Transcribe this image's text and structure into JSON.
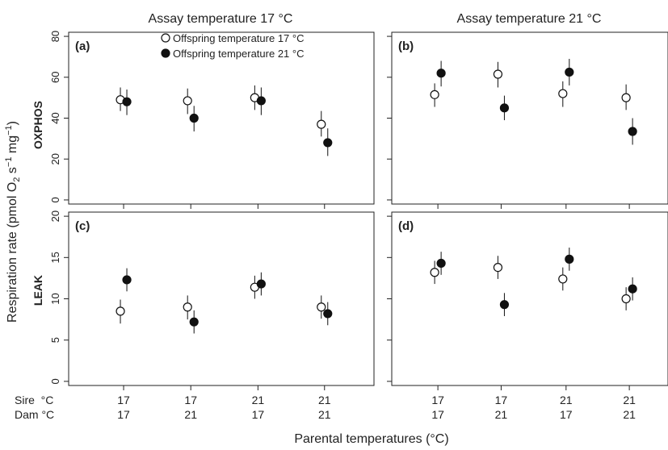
{
  "figure": {
    "ylabel": "Respiration rate (pmol O",
    "ylabel_sub": "2",
    "ylabel_mid": " s",
    "ylabel_sup1": "−1",
    "ylabel_mid2": " mg",
    "ylabel_sup2": "−1",
    "ylabel_end": ")",
    "xlabel": "Parental temperatures (°C)",
    "col_titles": [
      "Assay temperature 17 °C",
      "Assay temperature 21 °C"
    ],
    "row_labels": [
      "OXPHOS",
      "LEAK"
    ],
    "sire_label": "Sire  °C",
    "dam_label": "Dam °C",
    "legend": {
      "open": "Offspring temperature 17 °C",
      "filled": "Offspring temperature 21 °C"
    },
    "colors": {
      "axis": "#222222",
      "point": "#111111",
      "background": "#ffffff"
    }
  },
  "chart_data": [
    {
      "type": "scatter",
      "panel": "(a)",
      "categories": [
        {
          "sire": "17",
          "dam": "17"
        },
        {
          "sire": "17",
          "dam": "21"
        },
        {
          "sire": "21",
          "dam": "17"
        },
        {
          "sire": "21",
          "dam": "21"
        }
      ],
      "ylim": [
        -2,
        82
      ],
      "yticks": [
        0,
        20,
        40,
        60,
        80
      ],
      "series": [
        {
          "name": "Offspring temperature 17 °C",
          "marker": "open",
          "values": [
            49,
            48.5,
            50,
            37
          ],
          "lower": [
            43.5,
            42,
            44,
            31
          ],
          "upper": [
            55,
            54.5,
            56,
            43.5
          ]
        },
        {
          "name": "Offspring temperature 21 °C",
          "marker": "filled",
          "values": [
            48,
            40,
            48.5,
            28
          ],
          "lower": [
            41.5,
            33.5,
            41.5,
            21.5
          ],
          "upper": [
            54,
            46,
            55,
            35
          ]
        }
      ]
    },
    {
      "type": "scatter",
      "panel": "(b)",
      "categories": [
        {
          "sire": "17",
          "dam": "17"
        },
        {
          "sire": "17",
          "dam": "21"
        },
        {
          "sire": "21",
          "dam": "17"
        },
        {
          "sire": "21",
          "dam": "21"
        }
      ],
      "ylim": [
        -2,
        82
      ],
      "yticks": [
        0,
        20,
        40,
        60,
        80
      ],
      "series": [
        {
          "name": "Offspring temperature 17 °C",
          "marker": "open",
          "values": [
            51.5,
            61.5,
            52,
            50
          ],
          "lower": [
            45.5,
            55,
            45.5,
            44
          ],
          "upper": [
            57,
            67.5,
            58,
            56.5
          ]
        },
        {
          "name": "Offspring temperature 21 °C",
          "marker": "filled",
          "values": [
            62,
            45,
            62.5,
            33.5
          ],
          "lower": [
            55.5,
            39,
            56,
            27
          ],
          "upper": [
            68,
            51,
            69,
            40
          ]
        }
      ]
    },
    {
      "type": "scatter",
      "panel": "(c)",
      "categories": [
        {
          "sire": "17",
          "dam": "17"
        },
        {
          "sire": "17",
          "dam": "21"
        },
        {
          "sire": "21",
          "dam": "17"
        },
        {
          "sire": "21",
          "dam": "21"
        }
      ],
      "ylim": [
        -0.5,
        20.5
      ],
      "yticks": [
        0,
        5,
        10,
        15,
        20
      ],
      "series": [
        {
          "name": "Offspring temperature 17 °C",
          "marker": "open",
          "values": [
            8.5,
            9,
            11.4,
            9
          ],
          "lower": [
            7,
            7.5,
            10,
            7.6
          ],
          "upper": [
            9.9,
            10.4,
            12.8,
            10.4
          ]
        },
        {
          "name": "Offspring temperature 21 °C",
          "marker": "filled",
          "values": [
            12.3,
            7.2,
            11.8,
            8.2
          ],
          "lower": [
            10.9,
            5.8,
            10.4,
            6.8
          ],
          "upper": [
            13.7,
            8.6,
            13.2,
            9.6
          ]
        }
      ]
    },
    {
      "type": "scatter",
      "panel": "(d)",
      "categories": [
        {
          "sire": "17",
          "dam": "17"
        },
        {
          "sire": "17",
          "dam": "21"
        },
        {
          "sire": "21",
          "dam": "17"
        },
        {
          "sire": "21",
          "dam": "21"
        }
      ],
      "ylim": [
        -0.5,
        20.5
      ],
      "yticks": [
        0,
        5,
        10,
        15,
        20
      ],
      "series": [
        {
          "name": "Offspring temperature 17 °C",
          "marker": "open",
          "values": [
            13.2,
            13.8,
            12.4,
            10
          ],
          "lower": [
            11.8,
            12.4,
            11,
            8.6
          ],
          "upper": [
            14.6,
            15.2,
            13.8,
            11.4
          ]
        },
        {
          "name": "Offspring temperature 21 °C",
          "marker": "filled",
          "values": [
            14.3,
            9.3,
            14.8,
            11.2
          ],
          "lower": [
            12.9,
            7.9,
            13.4,
            9.8
          ],
          "upper": [
            15.7,
            10.7,
            16.2,
            12.6
          ]
        }
      ]
    }
  ]
}
